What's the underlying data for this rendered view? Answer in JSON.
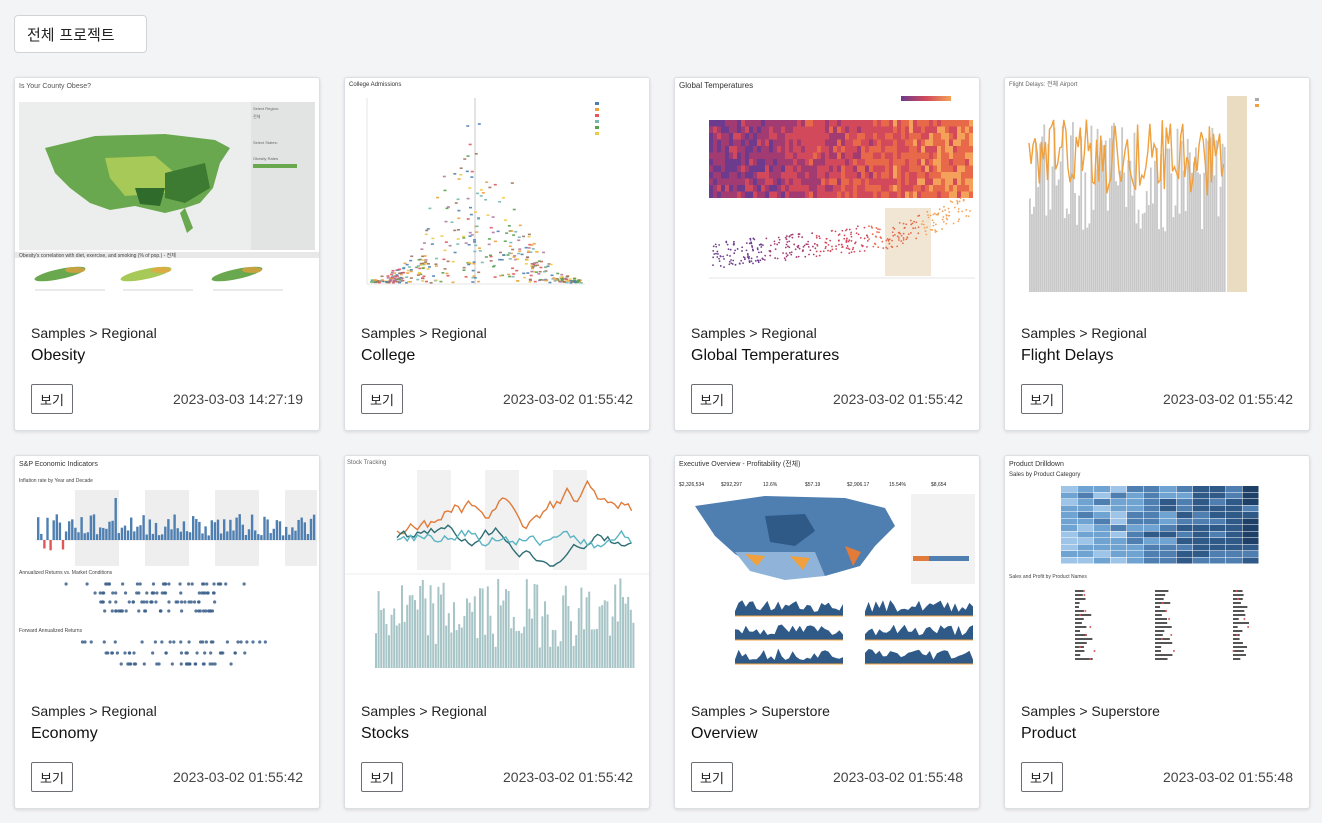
{
  "project_select": {
    "label": "전체 프로젝트"
  },
  "cards": [
    {
      "category": "Samples > Regional",
      "title": "Obesity",
      "view_label": "보기",
      "date": "2023-03-03 14:27:19",
      "thumb": {
        "title": "Is Your County Obese?",
        "subtitle": "Obesity's correlation with diet, exercise, and smoking (% of pop.) - 전체"
      }
    },
    {
      "category": "Samples > Regional",
      "title": "College",
      "view_label": "보기",
      "date": "2023-03-02 01:55:42",
      "thumb": {
        "title": "College Admissions"
      }
    },
    {
      "category": "Samples > Regional",
      "title": "Global Temperatures",
      "view_label": "보기",
      "date": "2023-03-02 01:55:42",
      "thumb": {
        "title": "Global Temperatures"
      }
    },
    {
      "category": "Samples > Regional",
      "title": "Flight Delays",
      "view_label": "보기",
      "date": "2023-03-02 01:55:42",
      "thumb": {
        "title": "Flight Delays: 전체 Airport"
      }
    },
    {
      "category": "Samples > Regional",
      "title": "Economy",
      "view_label": "보기",
      "date": "2023-03-02 01:55:42",
      "thumb": {
        "title": "S&P Economic Indicators",
        "subtitle": "Inflation rate by Year and Decade",
        "subtitle2": "Annualized Returns vs. Market Conditions",
        "subtitle3": "Forward Annualized Returns"
      }
    },
    {
      "category": "Samples > Regional",
      "title": "Stocks",
      "view_label": "보기",
      "date": "2023-03-02 01:55:42",
      "thumb": {
        "title": "Stock Tracking"
      }
    },
    {
      "category": "Samples > Superstore",
      "title": "Overview",
      "view_label": "보기",
      "date": "2023-03-02 01:55:48",
      "thumb": {
        "title": "Executive Overview - Profitability (전체)",
        "kpis": [
          "$2,326,534",
          "$292,297",
          "12.6%",
          "$57.19",
          "$2,906.17",
          "15.54%",
          "$8,654"
        ]
      }
    },
    {
      "category": "Samples > Superstore",
      "title": "Product",
      "view_label": "보기",
      "date": "2023-03-02 01:55:48",
      "thumb": {
        "title": "Product Drilldown",
        "subtitle": "Sales by Product Category",
        "subtitle2": "Sales and Profit by Product Names"
      }
    }
  ],
  "colors": {
    "map_green": "#6aa84f",
    "map_green_dark": "#2f6b2a",
    "orange": "#f0a03c",
    "steel_blue": "#4f7fb0",
    "teal": "#5ab4c4",
    "dark_teal": "#2d6e74",
    "heat_red": "#d1495b",
    "heat_orange": "#f4a259",
    "heat_purple": "#6d3b8e"
  }
}
